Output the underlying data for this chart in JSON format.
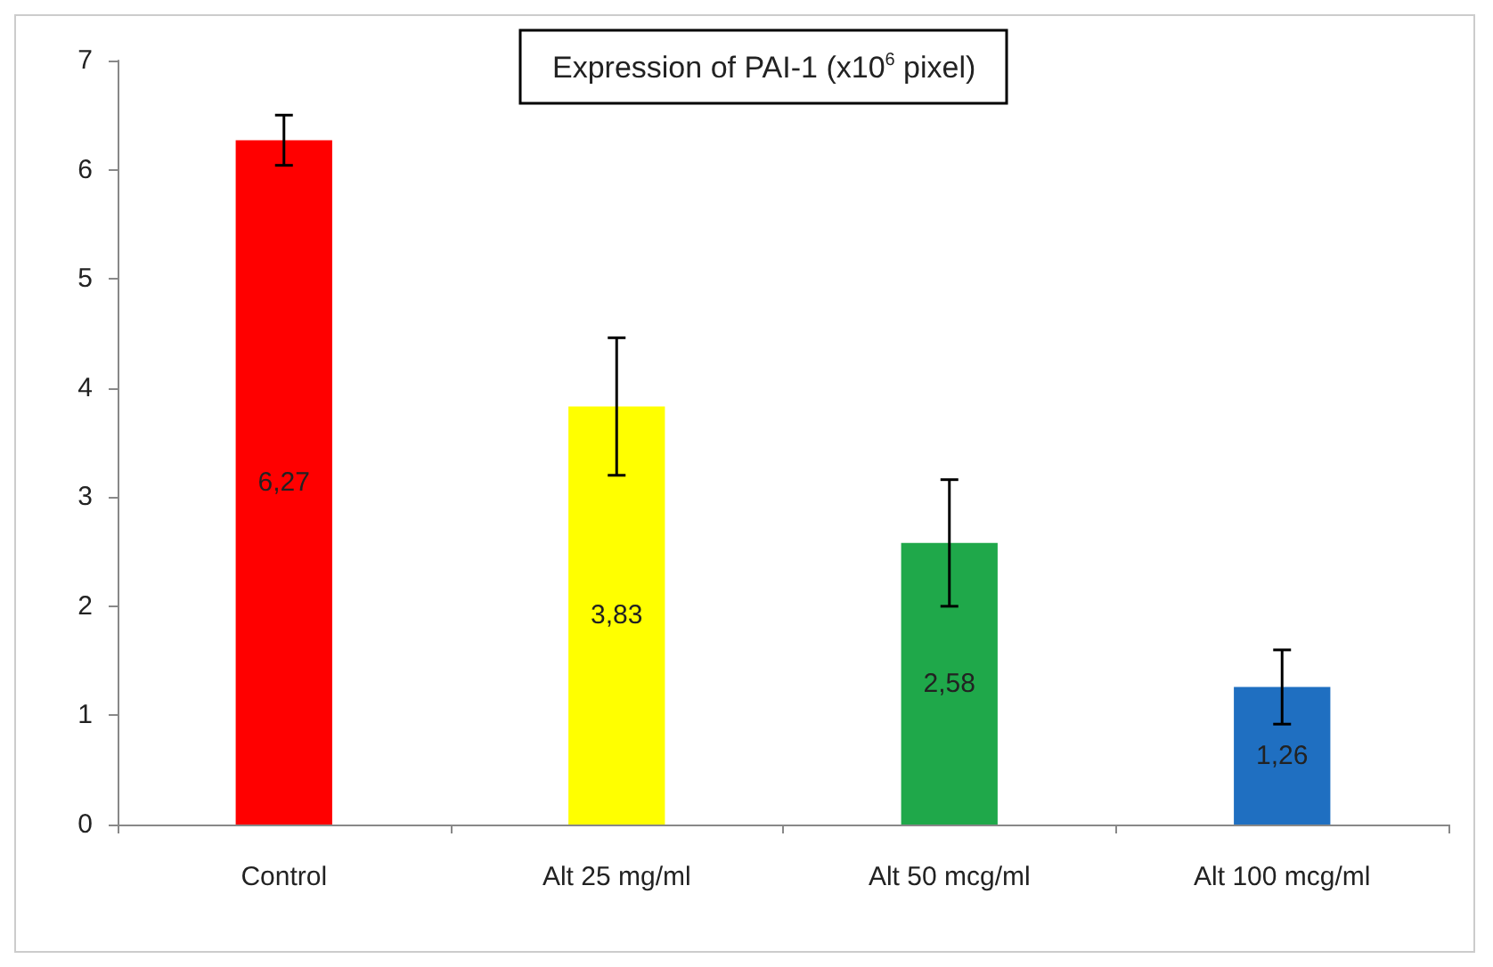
{
  "chart_data": {
    "type": "bar",
    "title": "Expression of PAI-1 (x10$^{6}$ pixel)",
    "categories": [
      "Control",
      "Alt 25 mg/ml",
      "Alt 50 mcg/ml",
      "Alt 100 mcg/ml"
    ],
    "values": [
      6.27,
      3.83,
      2.58,
      1.26
    ],
    "colors": [
      "#ff0000",
      "#ffff00",
      "#1fa84a",
      "#1f6fc1"
    ],
    "errors": [
      0.23,
      0.63,
      0.58,
      0.34
    ],
    "value_labels": [
      "6,27",
      "3,83",
      "2,58",
      "1,26"
    ],
    "ylim": [
      0,
      7
    ],
    "yticks": [
      0,
      1,
      2,
      3,
      4,
      5,
      6,
      7
    ],
    "grid": false
  }
}
